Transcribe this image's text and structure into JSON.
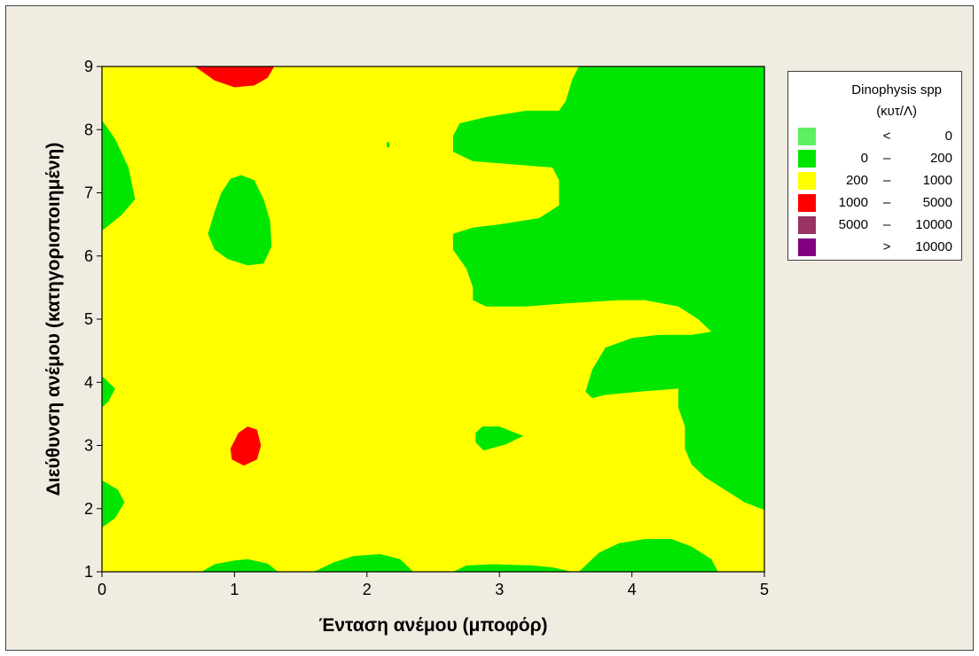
{
  "chart_data": {
    "type": "contour",
    "xlabel": "Ένταση ανέμου (μποφόρ)",
    "ylabel": "Διεύθυνση ανέμου (κατηγοριοποιημένη)",
    "xlim": [
      0,
      5
    ],
    "ylim": [
      1,
      9
    ],
    "x_ticks": [
      "0",
      "1",
      "2",
      "3",
      "4",
      "5"
    ],
    "y_ticks": [
      "1",
      "2",
      "3",
      "4",
      "5",
      "6",
      "7",
      "8",
      "9"
    ],
    "background_level": "200 – 1000",
    "regions": [
      {
        "level": "0 – 200",
        "points": [
          [
            3.6,
            9
          ],
          [
            5,
            9
          ],
          [
            5,
            1.98
          ],
          [
            4.85,
            2.1
          ],
          [
            4.7,
            2.3
          ],
          [
            4.55,
            2.5
          ],
          [
            4.45,
            2.7
          ],
          [
            4.4,
            2.95
          ],
          [
            4.4,
            3.3
          ],
          [
            4.35,
            3.6
          ],
          [
            4.35,
            3.9
          ],
          [
            4.05,
            3.85
          ],
          [
            3.8,
            3.8
          ],
          [
            3.7,
            3.75
          ],
          [
            3.65,
            3.85
          ],
          [
            3.7,
            4.2
          ],
          [
            3.8,
            4.55
          ],
          [
            4,
            4.7
          ],
          [
            4.2,
            4.75
          ],
          [
            4.45,
            4.75
          ],
          [
            4.6,
            4.8
          ],
          [
            4.5,
            5
          ],
          [
            4.35,
            5.2
          ],
          [
            4.1,
            5.3
          ],
          [
            3.9,
            5.3
          ],
          [
            3.5,
            5.25
          ],
          [
            3.2,
            5.2
          ],
          [
            2.9,
            5.2
          ],
          [
            2.8,
            5.3
          ],
          [
            2.8,
            5.5
          ],
          [
            2.75,
            5.8
          ],
          [
            2.65,
            6.1
          ],
          [
            2.65,
            6.35
          ],
          [
            2.8,
            6.45
          ],
          [
            3,
            6.5
          ],
          [
            3.3,
            6.6
          ],
          [
            3.45,
            6.8
          ],
          [
            3.45,
            7.2
          ],
          [
            3.4,
            7.4
          ],
          [
            3.1,
            7.45
          ],
          [
            2.8,
            7.5
          ],
          [
            2.65,
            7.65
          ],
          [
            2.65,
            7.9
          ],
          [
            2.7,
            8.1
          ],
          [
            2.9,
            8.2
          ],
          [
            3.2,
            8.3
          ],
          [
            3.45,
            8.3
          ],
          [
            3.5,
            8.45
          ],
          [
            3.55,
            8.8
          ]
        ]
      },
      {
        "level": "0 – 200",
        "points": [
          [
            0,
            8.15
          ],
          [
            0.1,
            7.85
          ],
          [
            0.2,
            7.4
          ],
          [
            0.25,
            6.9
          ],
          [
            0.15,
            6.65
          ],
          [
            0,
            6.4
          ]
        ]
      },
      {
        "level": "0 – 200",
        "points": [
          [
            0.8,
            6.35
          ],
          [
            0.85,
            6.7
          ],
          [
            0.9,
            7
          ],
          [
            0.97,
            7.22
          ],
          [
            1.05,
            7.28
          ],
          [
            1.15,
            7.2
          ],
          [
            1.22,
            6.9
          ],
          [
            1.27,
            6.55
          ],
          [
            1.28,
            6.15
          ],
          [
            1.22,
            5.88
          ],
          [
            1.1,
            5.85
          ],
          [
            0.95,
            5.95
          ],
          [
            0.85,
            6.1
          ]
        ]
      },
      {
        "level": "0 – 200",
        "points": [
          [
            0,
            4.1
          ],
          [
            0.1,
            3.9
          ],
          [
            0.05,
            3.7
          ],
          [
            0,
            3.6
          ]
        ]
      },
      {
        "level": "0 – 200",
        "points": [
          [
            0,
            2.45
          ],
          [
            0.12,
            2.3
          ],
          [
            0.17,
            2.1
          ],
          [
            0.1,
            1.85
          ],
          [
            0,
            1.7
          ]
        ]
      },
      {
        "level": "0 – 200",
        "points": [
          [
            2.87,
            3.3
          ],
          [
            3,
            3.3
          ],
          [
            3.12,
            3.2
          ],
          [
            3.18,
            3.15
          ],
          [
            3.05,
            3.02
          ],
          [
            2.88,
            2.92
          ],
          [
            2.82,
            3.05
          ],
          [
            2.82,
            3.2
          ]
        ]
      },
      {
        "level": "0 – 200",
        "points": [
          [
            0.75,
            1
          ],
          [
            0.85,
            1.12
          ],
          [
            1,
            1.18
          ],
          [
            1.1,
            1.2
          ],
          [
            1.25,
            1.13
          ],
          [
            1.33,
            1
          ]
        ]
      },
      {
        "level": "0 – 200",
        "points": [
          [
            1.6,
            1
          ],
          [
            1.75,
            1.15
          ],
          [
            1.9,
            1.25
          ],
          [
            2.1,
            1.28
          ],
          [
            2.25,
            1.2
          ],
          [
            2.35,
            1
          ]
        ]
      },
      {
        "level": "0 – 200",
        "points": [
          [
            2.65,
            1
          ],
          [
            2.75,
            1.1
          ],
          [
            2.95,
            1.12
          ],
          [
            3.25,
            1.1
          ],
          [
            3.4,
            1.07
          ],
          [
            3.55,
            1
          ]
        ]
      },
      {
        "level": "0 – 200",
        "points": [
          [
            3.6,
            1
          ],
          [
            3.75,
            1.3
          ],
          [
            3.9,
            1.45
          ],
          [
            4.1,
            1.52
          ],
          [
            4.3,
            1.52
          ],
          [
            4.45,
            1.4
          ],
          [
            4.6,
            1.2
          ],
          [
            4.65,
            1
          ]
        ]
      },
      {
        "level": "0 – 200",
        "points": [
          [
            4.82,
            4.44
          ],
          [
            4.88,
            4.44
          ],
          [
            4.84,
            4.32
          ]
        ]
      },
      {
        "level": "0 – 200",
        "points": [
          [
            2.15,
            7.8
          ],
          [
            2.17,
            7.8
          ],
          [
            2.17,
            7.72
          ],
          [
            2.15,
            7.72
          ]
        ]
      },
      {
        "level": "1000 – 5000",
        "points": [
          [
            0.7,
            9
          ],
          [
            1.3,
            9
          ],
          [
            1.25,
            8.82
          ],
          [
            1.15,
            8.7
          ],
          [
            1,
            8.67
          ],
          [
            0.85,
            8.78
          ]
        ]
      },
      {
        "level": "1000 – 5000",
        "points": [
          [
            0.97,
            2.95
          ],
          [
            1.03,
            3.2
          ],
          [
            1.1,
            3.3
          ],
          [
            1.17,
            3.25
          ],
          [
            1.2,
            3
          ],
          [
            1.17,
            2.78
          ],
          [
            1.07,
            2.68
          ],
          [
            0.98,
            2.78
          ]
        ]
      }
    ],
    "legend": {
      "title": [
        "Dinophysis spp",
        "(κυτ/Λ)"
      ],
      "placement": "right",
      "entries": [
        {
          "lo": "",
          "sep": "<",
          "hi": "0",
          "color": "#5ef05e"
        },
        {
          "lo": "0",
          "sep": "–",
          "hi": "200",
          "color": "#00e600"
        },
        {
          "lo": "200",
          "sep": "–",
          "hi": "1000",
          "color": "#ffff00"
        },
        {
          "lo": "1000",
          "sep": "–",
          "hi": "5000",
          "color": "#ff0000"
        },
        {
          "lo": "5000",
          "sep": "–",
          "hi": "10000",
          "color": "#993366"
        },
        {
          "lo": "",
          "sep": ">",
          "hi": "10000",
          "color": "#800080"
        }
      ]
    }
  }
}
